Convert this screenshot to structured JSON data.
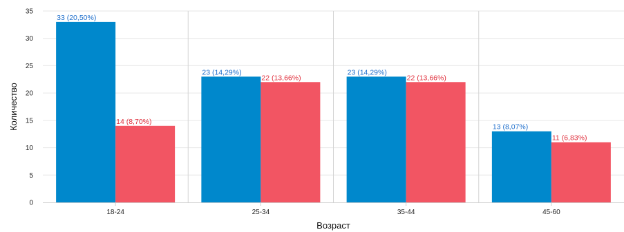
{
  "chart_data": {
    "type": "bar",
    "title": "",
    "xlabel": "Возраст",
    "ylabel": "Количество",
    "categories": [
      "18-24",
      "25-34",
      "35-44",
      "45-60"
    ],
    "series": [
      {
        "values": [
          33,
          23,
          23,
          13
        ],
        "labels": [
          "33 (20,50%)",
          "23 (14,29%)",
          "23 (14,29%)",
          "13 (8,07%)"
        ],
        "color": "#0088cc",
        "label_color": "#1f6fcc"
      },
      {
        "values": [
          14,
          22,
          22,
          11
        ],
        "labels": [
          "14 (8,70%)",
          "22 (13,66%)",
          "22 (13,66%)",
          "11 (6,83%)"
        ],
        "color": "#f25563",
        "label_color": "#e0303d"
      }
    ],
    "ylim": [
      0,
      35
    ],
    "yticks": [
      "0",
      "5",
      "10",
      "15",
      "20",
      "25",
      "30",
      "35"
    ],
    "grid": true,
    "legend": "none"
  }
}
